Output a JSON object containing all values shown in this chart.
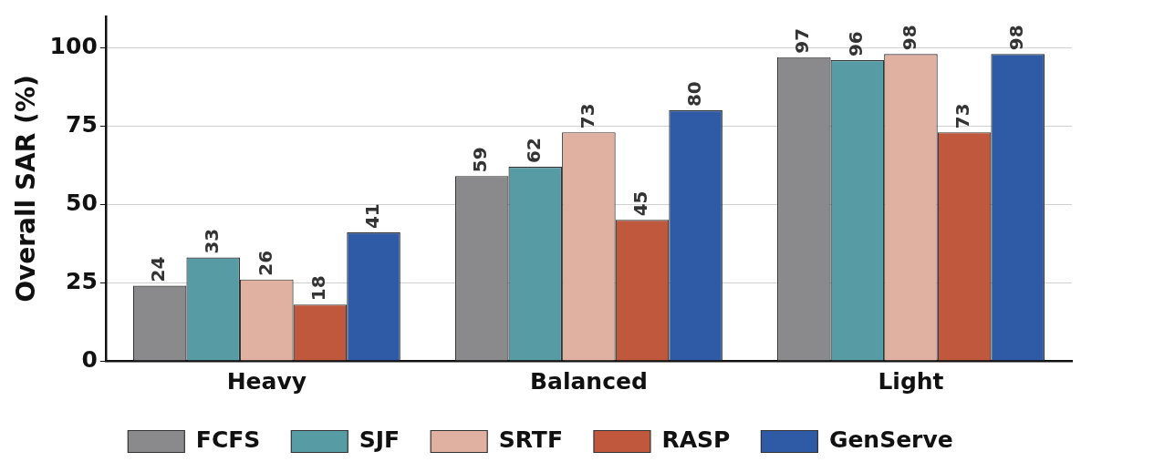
{
  "chart_data": {
    "type": "bar",
    "ylabel": "Overall SAR (%)",
    "categories": [
      "Heavy",
      "Balanced",
      "Light"
    ],
    "series": [
      {
        "name": "FCFS",
        "color": "#8a8a8c",
        "values": [
          24,
          59,
          97
        ]
      },
      {
        "name": "SJF",
        "color": "#579ca4",
        "values": [
          33,
          62,
          96
        ]
      },
      {
        "name": "SRTF",
        "color": "#e0b0a0",
        "values": [
          26,
          73,
          98
        ]
      },
      {
        "name": "RASP",
        "color": "#c0583e",
        "values": [
          18,
          45,
          73
        ]
      },
      {
        "name": "GenServe",
        "color": "#2f5aa6",
        "values": [
          41,
          80,
          98
        ]
      }
    ],
    "ylim": [
      0,
      110
    ],
    "yticks": [
      0,
      25,
      50,
      75,
      100
    ],
    "grid": "y",
    "legend": "bottom",
    "data_labels": true
  }
}
